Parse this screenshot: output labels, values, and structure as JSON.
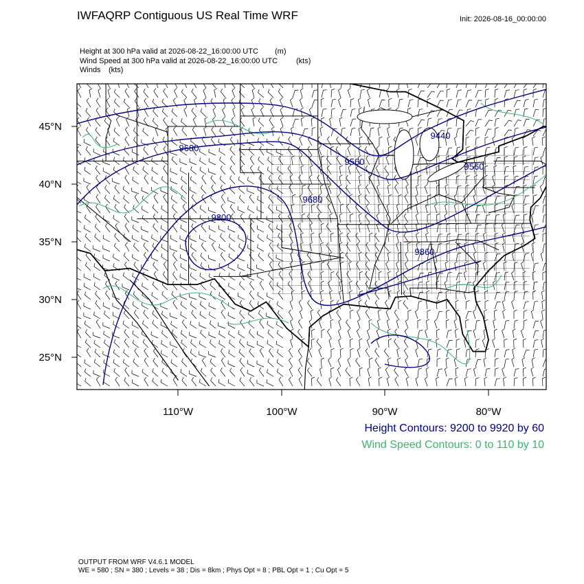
{
  "header": {
    "title": "IWFAQRP Contiguous US Real Time WRF",
    "init": "Init: 2026-08-16_00:00:00"
  },
  "fields": [
    {
      "text": "Height at 300 hPa valid at 2026-08-22_16:00:00 UTC",
      "units": "(m)"
    },
    {
      "text": "Wind Speed at 300 hPa valid at 2026-08-22_16:00:00 UTC",
      "units": "(kts)"
    },
    {
      "text": "Winds",
      "units": "(kts)"
    }
  ],
  "map": {
    "lat_labels": [
      "45°N",
      "40°N",
      "35°N",
      "30°N",
      "25°N"
    ],
    "lon_labels": [
      "110°W",
      "100°W",
      "90°W",
      "80°W"
    ],
    "height_contour_labels": [
      "9680",
      "9440",
      "9560",
      "9560",
      "9680",
      "9800",
      "9860"
    ]
  },
  "legend": {
    "height": "Height Contours: 9200 to 9920 by 60",
    "wind": "Wind Speed Contours: 0 to 110 by 10"
  },
  "footer": {
    "model": "OUTPUT FROM WRF V4.6.1 MODEL",
    "settings": "WE = 580 ; SN = 380 ; Levels = 38 ; Dis = 8km ; Phys Opt = 8 ; PBL Opt = 1 ; Cu Opt = 5"
  }
}
